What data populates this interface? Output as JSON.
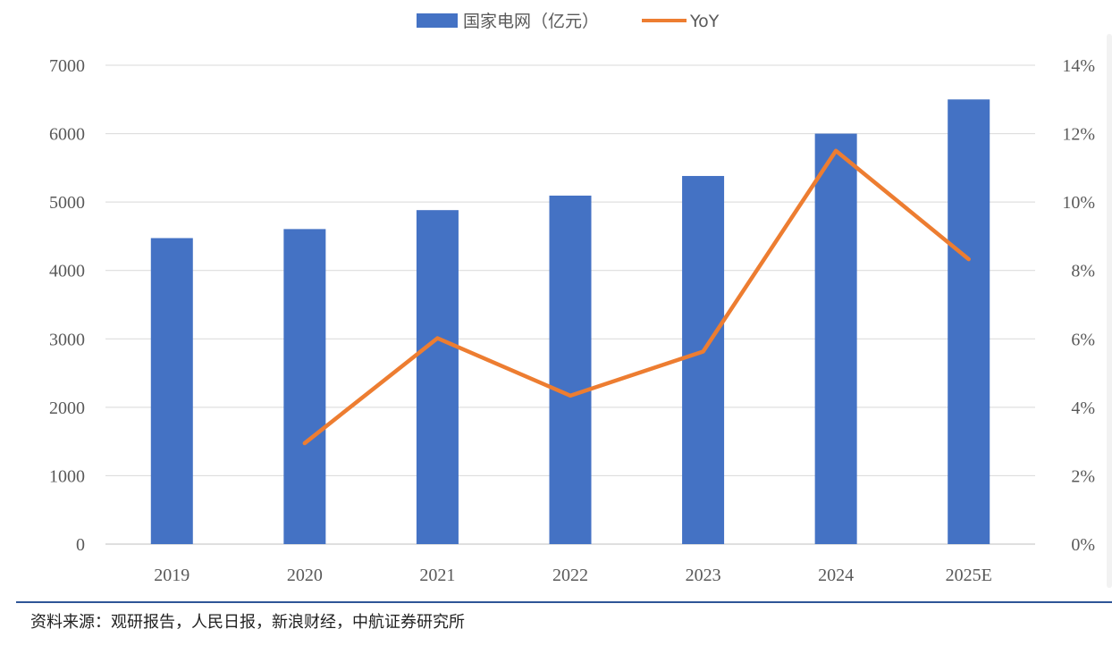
{
  "chart_data": {
    "type": "bar",
    "categories": [
      "2019",
      "2020",
      "2021",
      "2022",
      "2023",
      "2024",
      "2025E"
    ],
    "series": [
      {
        "name": "国家电网（亿元）",
        "type": "bar",
        "axis": "left",
        "color": "#4472c4",
        "values": [
          4473,
          4605,
          4882,
          5094,
          5381,
          6000,
          6500
        ]
      },
      {
        "name": "YoY",
        "type": "line",
        "axis": "right",
        "color": "#ed7d31",
        "values": [
          null,
          0.0295,
          0.0602,
          0.0434,
          0.0563,
          0.115,
          0.0833
        ]
      }
    ],
    "y_left": {
      "min": 0,
      "max": 7000,
      "step": 1000,
      "tick_labels": [
        "0",
        "1000",
        "2000",
        "3000",
        "4000",
        "5000",
        "6000",
        "7000"
      ]
    },
    "y_right": {
      "min": 0,
      "max": 0.14,
      "step": 0.02,
      "tick_labels": [
        "0%",
        "2%",
        "4%",
        "6%",
        "8%",
        "10%",
        "12%",
        "14%"
      ]
    },
    "grid": true,
    "legend_position": "top-center"
  },
  "legend": {
    "bar_label": "国家电网（亿元）",
    "line_label": "YoY"
  },
  "source_text": "资料来源：观研报告，人民日报，新浪财经，中航证券研究所"
}
